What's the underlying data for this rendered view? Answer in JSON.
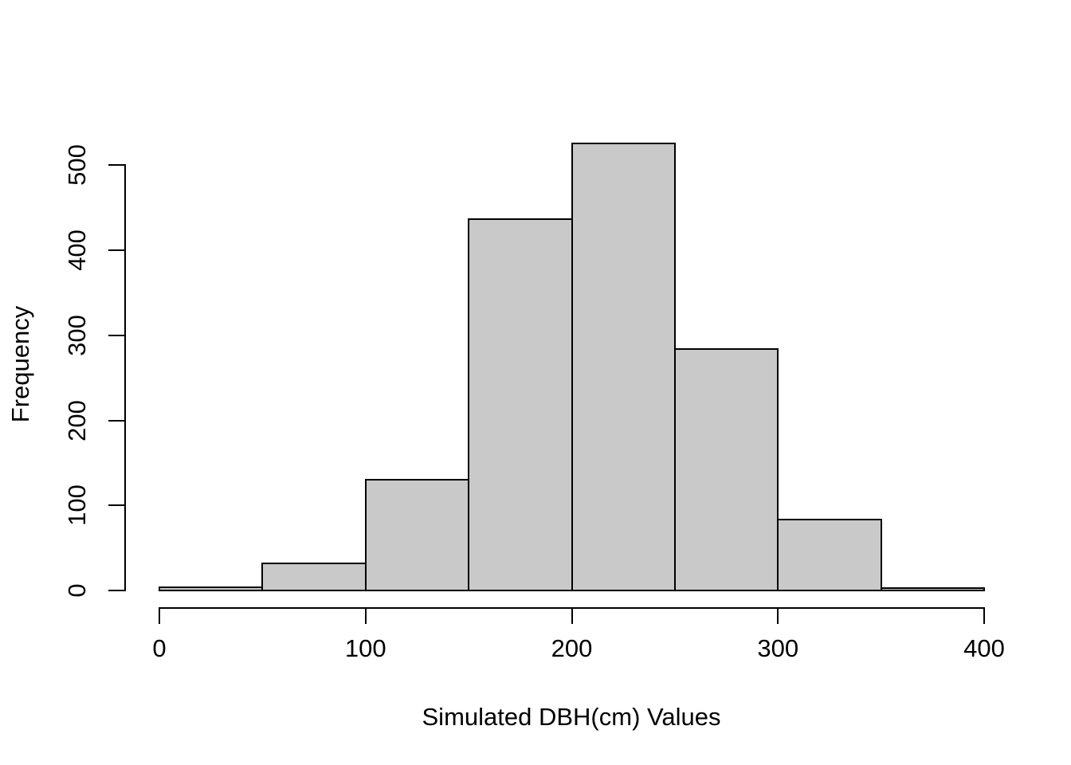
{
  "chart_data": {
    "type": "histogram",
    "title": "",
    "xlabel": "Simulated DBH(cm) Values",
    "ylabel": "Frequency",
    "bin_edges": [
      0,
      50,
      100,
      150,
      200,
      250,
      300,
      350,
      400
    ],
    "counts": [
      4,
      32,
      130,
      437,
      526,
      284,
      83,
      3
    ],
    "x_ticks": [
      0,
      100,
      200,
      300,
      400
    ],
    "y_ticks": [
      0,
      100,
      200,
      300,
      400,
      500
    ],
    "xlim": [
      0,
      400
    ],
    "ylim": [
      0,
      526
    ],
    "grid": false,
    "legend": "none",
    "bar_fill": "#c9c9c9",
    "bar_border": "#000000",
    "axis_color": "#000000",
    "background": "#ffffff"
  }
}
